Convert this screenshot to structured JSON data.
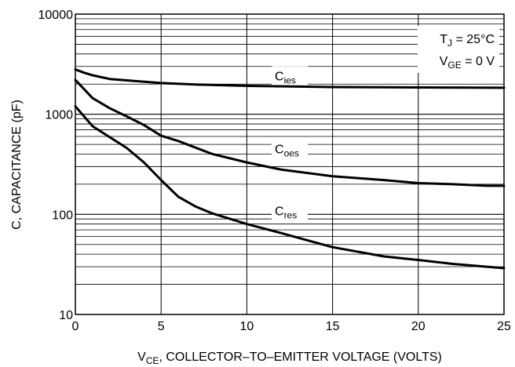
{
  "chart_data": {
    "type": "line",
    "title": "",
    "xlabel": {
      "main": "V",
      "sub": "CE",
      "rest": ", COLLECTOR–TO–EMITTER VOLTAGE (VOLTS)"
    },
    "ylabel": "C, CAPACITANCE (pF)",
    "xlim": [
      0,
      25
    ],
    "ylim": [
      10,
      10000
    ],
    "yscale": "log",
    "grid": true,
    "x_ticks": [
      "0",
      "5",
      "10",
      "15",
      "20",
      "25"
    ],
    "y_ticks": [
      "10",
      "100",
      "1000",
      "10000"
    ],
    "conditions": [
      {
        "main": "T",
        "sub": "J",
        "rest": " = 25°C"
      },
      {
        "main": "V",
        "sub": "GE",
        "rest": " = 0 V"
      }
    ],
    "series": [
      {
        "name": "C",
        "sub": "ies",
        "label_at": [
          12.5,
          2300
        ],
        "x": [
          0,
          0.5,
          1,
          2,
          3,
          5,
          7,
          10,
          15,
          20,
          25
        ],
        "y": [
          2800,
          2600,
          2450,
          2250,
          2180,
          2050,
          1980,
          1920,
          1870,
          1850,
          1840
        ]
      },
      {
        "name": "C",
        "sub": "oes",
        "label_at": [
          12.5,
          430
        ],
        "x": [
          0,
          1,
          2,
          3,
          4,
          5,
          6,
          8,
          10,
          12,
          15,
          18,
          20,
          22,
          24,
          25
        ],
        "y": [
          2200,
          1450,
          1150,
          950,
          780,
          610,
          540,
          400,
          330,
          280,
          240,
          220,
          205,
          200,
          193,
          193
        ]
      },
      {
        "name": "C",
        "sub": "res",
        "label_at": [
          12.5,
          103
        ],
        "x": [
          0,
          1,
          2,
          3,
          4,
          5,
          6,
          7,
          8,
          10,
          12,
          15,
          18,
          20,
          22,
          25
        ],
        "y": [
          1200,
          760,
          590,
          460,
          330,
          220,
          150,
          120,
          102,
          80,
          65,
          47,
          38,
          35,
          32,
          29
        ]
      }
    ]
  }
}
